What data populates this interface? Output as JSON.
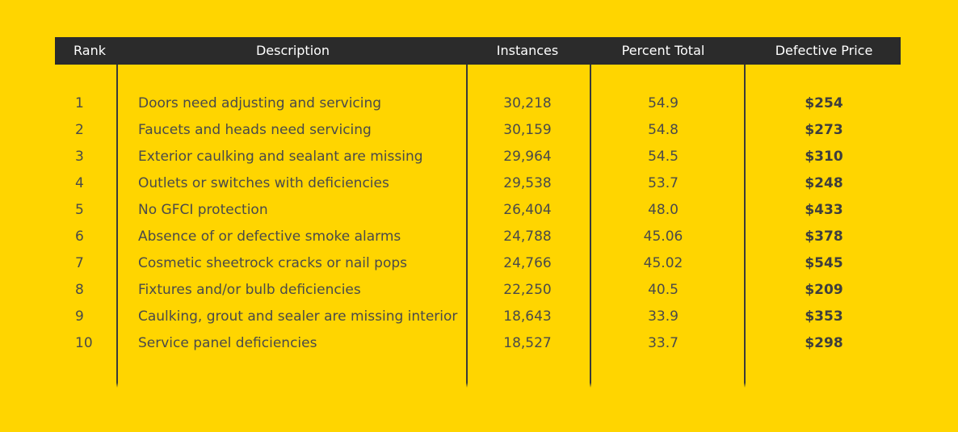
{
  "table": {
    "headers": {
      "rank": "Rank",
      "description": "Description",
      "instances": "Instances",
      "percent": "Percent Total",
      "price": "Defective Price"
    },
    "rows": [
      {
        "rank": "1",
        "description": "Doors need adjusting and servicing",
        "instances": "30,218",
        "percent": "54.9",
        "price": "$254"
      },
      {
        "rank": "2",
        "description": "Faucets and heads need servicing",
        "instances": "30,159",
        "percent": "54.8",
        "price": "$273"
      },
      {
        "rank": "3",
        "description": "Exterior caulking and sealant are missing",
        "instances": "29,964",
        "percent": "54.5",
        "price": "$310"
      },
      {
        "rank": "4",
        "description": "Outlets or switches with deficiencies",
        "instances": "29,538",
        "percent": "53.7",
        "price": "$248"
      },
      {
        "rank": "5",
        "description": "No GFCI protection",
        "instances": "26,404",
        "percent": "48.0",
        "price": "$433"
      },
      {
        "rank": "6",
        "description": "Absence of or defective smoke alarms",
        "instances": "24,788",
        "percent": "45.06",
        "price": "$378"
      },
      {
        "rank": "7",
        "description": "Cosmetic sheetrock cracks or nail pops",
        "instances": "24,766",
        "percent": "45.02",
        "price": "$545"
      },
      {
        "rank": "8",
        "description": "Fixtures and/or bulb deficiencies",
        "instances": "22,250",
        "percent": "40.5",
        "price": "$209"
      },
      {
        "rank": "9",
        "description": "Caulking, grout and sealer are missing interior",
        "instances": "18,643",
        "percent": "33.9",
        "price": "$353"
      },
      {
        "rank": "10",
        "description": "Service panel deficiencies",
        "instances": "18,527",
        "percent": "33.7",
        "price": "$298"
      }
    ]
  },
  "colors": {
    "background": "#FFD500",
    "header": "#2B2B2B",
    "text": "#4A4A4A"
  }
}
